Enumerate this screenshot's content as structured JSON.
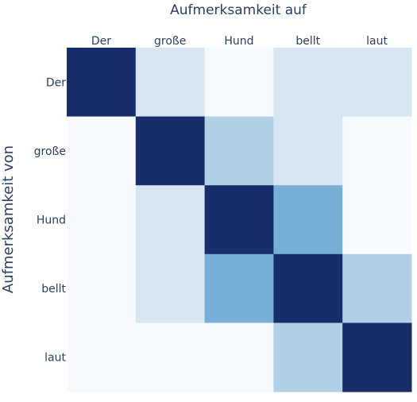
{
  "chart_data": {
    "type": "heatmap",
    "title": "Aufmerksamkeit auf",
    "ylabel": "Aufmerksamkeit von",
    "x_categories": [
      "Der",
      "große",
      "Hund",
      "bellt",
      "laut"
    ],
    "y_categories": [
      "Der",
      "große",
      "Hund",
      "bellt",
      "laut"
    ],
    "x_axis_position": "top",
    "values": [
      [
        0.9,
        0.1,
        0.0,
        0.1,
        0.1
      ],
      [
        0.0,
        0.9,
        0.2,
        0.1,
        0.0
      ],
      [
        0.0,
        0.1,
        0.9,
        0.35,
        0.0
      ],
      [
        0.0,
        0.1,
        0.35,
        0.9,
        0.2
      ],
      [
        0.0,
        0.0,
        0.0,
        0.2,
        0.9
      ]
    ],
    "value_range": [
      0,
      0.9
    ],
    "colorscale": "Blues",
    "colors": {
      "lowest": "#f7fbff",
      "low": "#d8e6f4",
      "medium_low": "#b2d0e6",
      "medium": "#78afd7",
      "highest": "#172e6b"
    },
    "grid": false,
    "legend": "none"
  }
}
